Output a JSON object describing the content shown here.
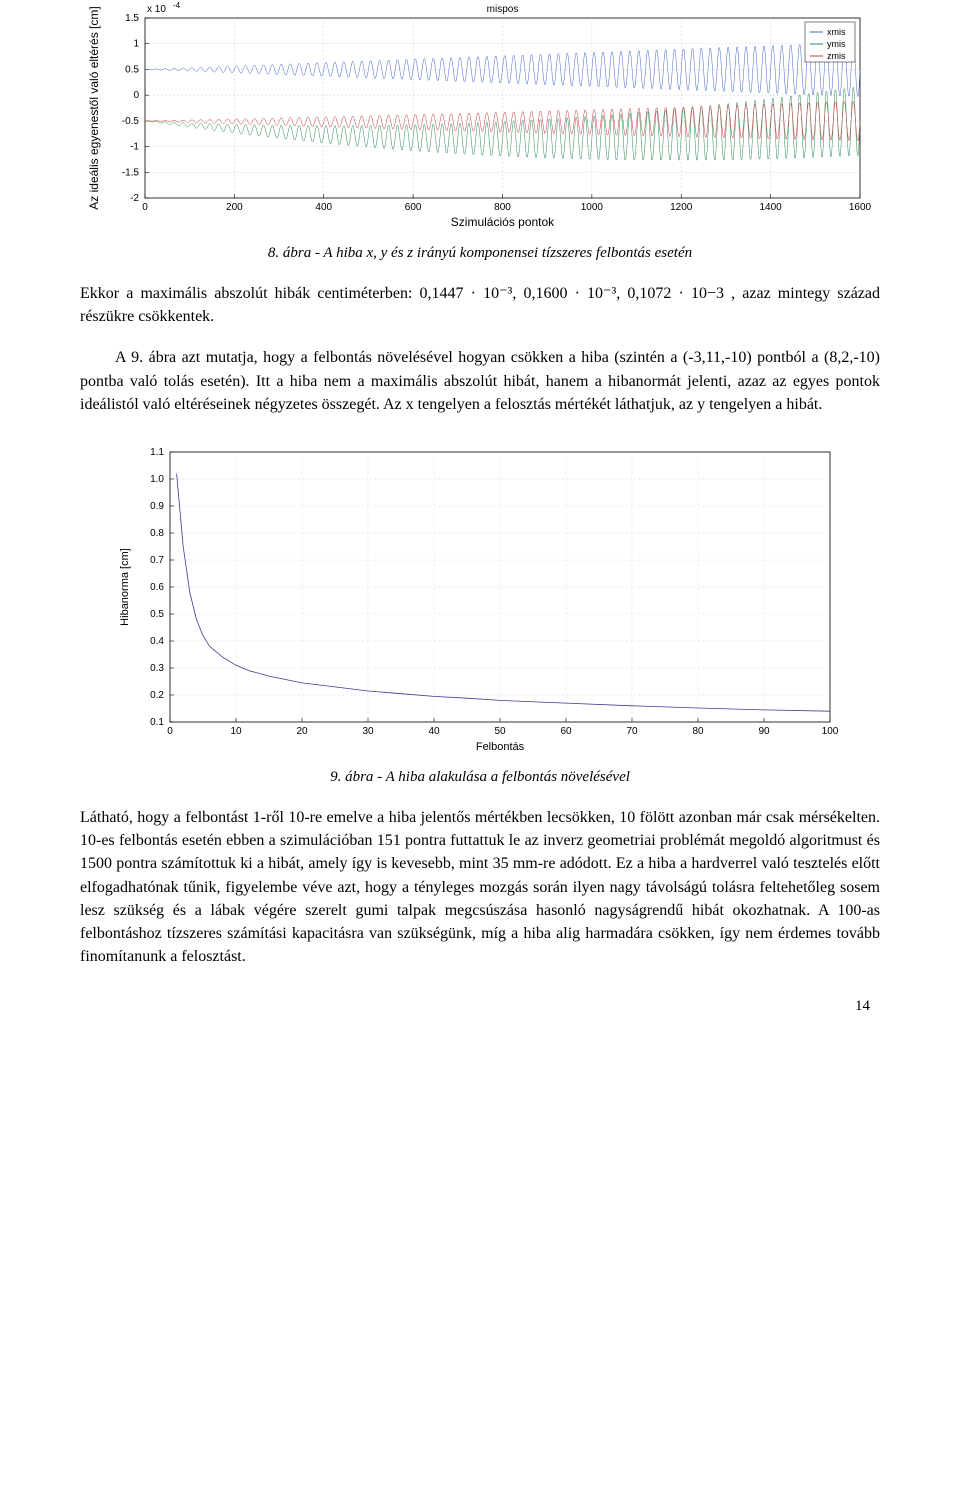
{
  "page_number": "14",
  "chart1": {
    "title": "mispos",
    "ylabel": "Az ideális egyenestől való eltérés [cm]",
    "xlabel": "Szimulációs pontok",
    "scale_label": "x 10",
    "scale_exp": "-4",
    "xlim": [
      0,
      1600
    ],
    "ylim": [
      -2,
      1.5
    ],
    "xticks": [
      0,
      200,
      400,
      600,
      800,
      1000,
      1200,
      1400,
      1600
    ],
    "yticks": [
      -2,
      -1.5,
      -1,
      -0.5,
      0,
      0.5,
      1,
      1.5
    ],
    "legend": [
      "xmis",
      "ymis",
      "zmis"
    ],
    "legend_colors": [
      "#4169cc",
      "#2e8b57",
      "#c44040"
    ],
    "line_width": 0.5,
    "grid_color": "#d0d0d0",
    "tick_fontsize": 10,
    "label_fontsize": 12,
    "series": [
      {
        "name": "xmis",
        "color": "#4169cc",
        "center_start": 0.5,
        "center_end": 0.5,
        "amp_start": 0.0,
        "amp_end": 0.55,
        "freq": 80
      },
      {
        "name": "ymis",
        "color": "#2e8b57",
        "center_start": -0.5,
        "center_mid": -1.2,
        "center_end": -0.5,
        "amp_start": 0.0,
        "amp_end": 0.7,
        "freq": 80
      },
      {
        "name": "zmis",
        "color": "#c44040",
        "center_start": -0.5,
        "center_mid": -0.55,
        "center_end": -0.5,
        "amp_start": 0.0,
        "amp_end": 0.4,
        "freq": 80
      }
    ]
  },
  "caption1": "8. ábra - A hiba x, y és z irányú komponensei tízszeres felbontás esetén",
  "para1": "Ekkor a maximális abszolút hibák centiméterben: 0,1447 · 10⁻³, 0,1600 · 10⁻³, 0,1072 · 10−3 , azaz mintegy század részükre csökkentek.",
  "para2": "A 9. ábra azt mutatja, hogy a felbontás növelésével hogyan csökken a hiba (szintén a (-3,11,-10) pontból a (8,2,-10) pontba való tolás esetén). Itt a hiba nem a maximális abszolút hibát, hanem a hibanormát jelenti, azaz az egyes pontok ideálistól való eltéréseinek négyzetes összegét. Az x tengelyen a felosztás mértékét láthatjuk, az y tengelyen a hibát.",
  "chart2": {
    "xlabel": "Felbontás",
    "ylabel": "Hibanorma [cm]",
    "xlim": [
      0,
      100
    ],
    "ylim": [
      0.1,
      1.1
    ],
    "xticks": [
      0,
      10,
      20,
      30,
      40,
      50,
      60,
      70,
      80,
      90,
      100
    ],
    "yticks": [
      0.1,
      0.2,
      0.3,
      0.4,
      0.5,
      0.6,
      0.7,
      0.8,
      0.9,
      1.0,
      1.1
    ],
    "grid_color": "#d8d8d8",
    "line_color": "#3b3b8f",
    "line_width": 0.8,
    "tick_fontsize": 10,
    "label_fontsize": 11,
    "points": [
      [
        1,
        1.02
      ],
      [
        2,
        0.75
      ],
      [
        3,
        0.58
      ],
      [
        4,
        0.48
      ],
      [
        5,
        0.42
      ],
      [
        6,
        0.38
      ],
      [
        8,
        0.34
      ],
      [
        10,
        0.31
      ],
      [
        12,
        0.29
      ],
      [
        15,
        0.27
      ],
      [
        20,
        0.245
      ],
      [
        25,
        0.23
      ],
      [
        30,
        0.215
      ],
      [
        35,
        0.205
      ],
      [
        40,
        0.195
      ],
      [
        45,
        0.188
      ],
      [
        50,
        0.18
      ],
      [
        60,
        0.17
      ],
      [
        70,
        0.16
      ],
      [
        80,
        0.152
      ],
      [
        90,
        0.145
      ],
      [
        100,
        0.14
      ]
    ]
  },
  "caption2": "9. ábra - A hiba alakulása a felbontás növelésével",
  "para3": "Látható, hogy a felbontást 1-ről 10-re emelve a hiba jelentős mértékben lecsökken, 10 fölött azonban már csak mérsékelten. 10-es felbontás esetén ebben a szimulációban 151 pontra futtattuk le az inverz geometriai problémát megoldó algoritmust és 1500 pontra számítottuk ki a hibát, amely így is kevesebb, mint 35 mm-re adódott. Ez a hiba a hardverrel való tesztelés előtt elfogadhatónak tűnik, figyelembe véve azt, hogy a tényleges mozgás során ilyen nagy távolságú tolásra feltehetőleg sosem lesz szükség és a lábak végére szerelt gumi talpak megcsúszása hasonló nagyságrendű hibát okozhatnak. A 100-as felbontáshoz tízszeres számítási kapacitásra van szükségünk, míg a hiba alig harmadára csökken, így nem érdemes tovább finomítanunk a felosztást."
}
